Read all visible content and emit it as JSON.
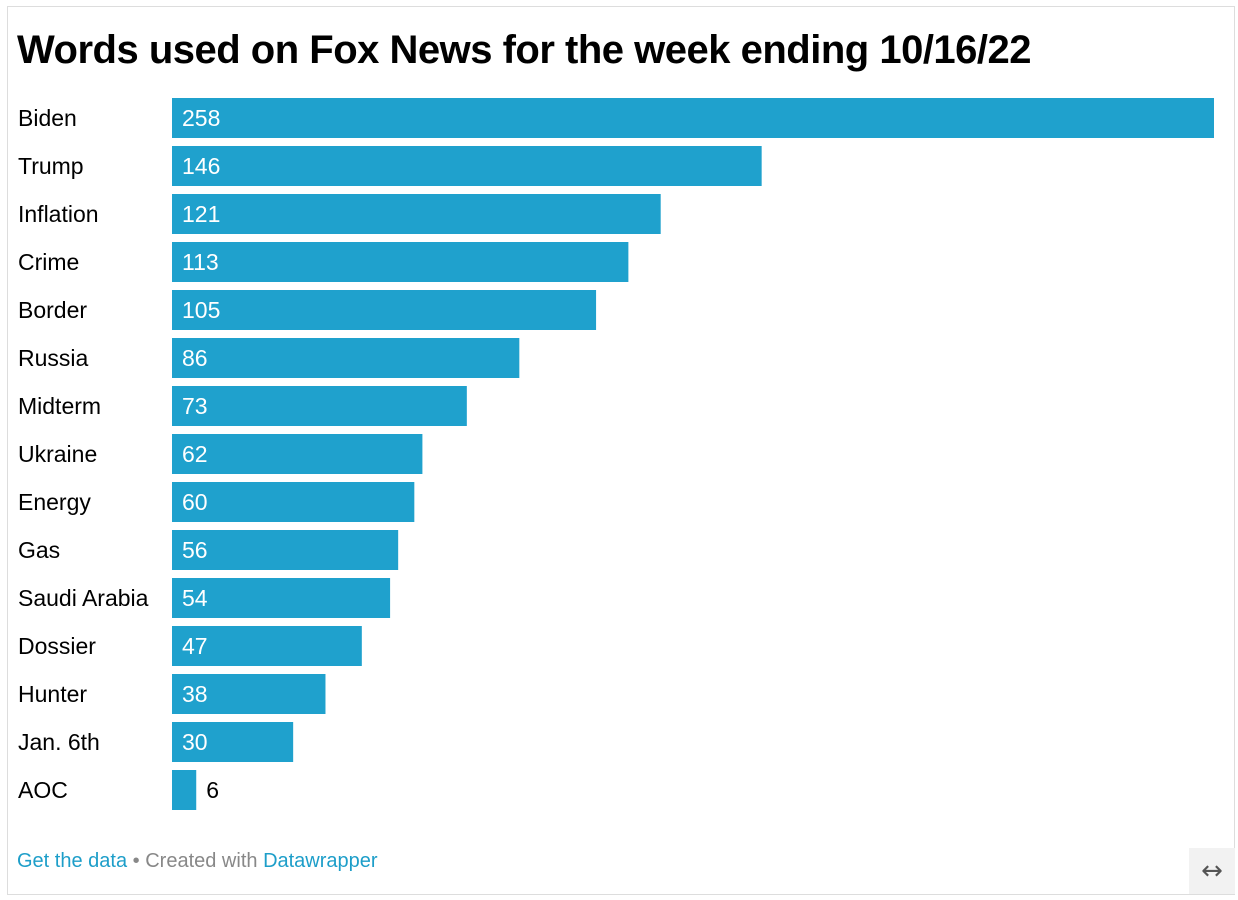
{
  "chart_data": {
    "type": "bar",
    "orientation": "horizontal",
    "title": "Words used on Fox News for the week ending 10/16/22",
    "categories": [
      "Biden",
      "Trump",
      "Inflation",
      "Crime",
      "Border",
      "Russia",
      "Midterm",
      "Ukraine",
      "Energy",
      "Gas",
      "Saudi Arabia",
      "Dossier",
      "Hunter",
      "Jan. 6th",
      "AOC"
    ],
    "values": [
      258,
      146,
      121,
      113,
      105,
      86,
      73,
      62,
      60,
      56,
      54,
      47,
      38,
      30,
      6
    ],
    "xlim": [
      0,
      258
    ],
    "grid": false,
    "bar_color": "#1fa1cd",
    "value_labels": true
  },
  "footer": {
    "get_data_label": "Get the data",
    "separator": "•",
    "created_with_label": "Created with",
    "tool_label": "Datawrapper"
  },
  "resize_icon": "↔",
  "colors": {
    "bar": "#1fa1cd",
    "link": "#1d9ec9",
    "text": "#000000",
    "muted": "#888888"
  }
}
